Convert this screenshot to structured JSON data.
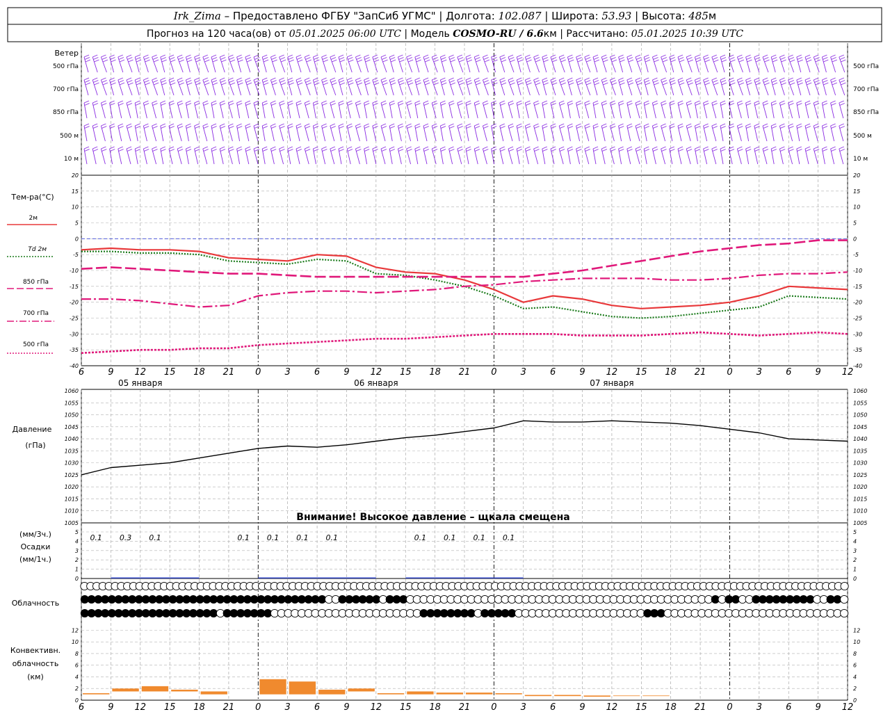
{
  "header": {
    "line1": {
      "station": "Irk_Zima",
      "provided": " – Предоставлено ФГБУ \"ЗапСиб УГМС\" | Долгота: ",
      "lon": "102.087",
      "lat_label": " | Широта: ",
      "lat": "53.93",
      "alt_label": " | Высота: ",
      "alt": "485",
      "alt_unit": "м"
    },
    "line2": {
      "prefix": "Прогноз на 120 часа(ов) от ",
      "run": "05.01.2025 06:00 UTC",
      "model_label": " | Модель ",
      "model": "COSMO-RU / 6.6",
      "model_unit": "км",
      "calc_label": " | Рассчитано: ",
      "calc": "05.01.2025 10:39 UTC"
    }
  },
  "panels": {
    "wind": {
      "title": "Ветер",
      "levels": [
        "500 гПа",
        "700 гПа",
        "850 гПа",
        "500 м",
        "10 м"
      ]
    },
    "temperature": {
      "title": "Тем-ра(°C)",
      "legend": [
        {
          "label": "2м",
          "color": "#e8383a",
          "style": "solid"
        },
        {
          "label": "Td 2м",
          "color": "#1a7a1a",
          "style": "dotted"
        },
        {
          "label": "850 гПа",
          "color": "#e0187a",
          "style": "dash"
        },
        {
          "label": "700 гПа",
          "color": "#e0187a",
          "style": "dashdot"
        },
        {
          "label": "500 гПа",
          "color": "#e0187a",
          "style": "dot"
        }
      ],
      "ticks": [
        "20",
        "15",
        "10",
        "5",
        "0",
        "-5",
        "-10",
        "-15",
        "-20",
        "-25",
        "-30",
        "-35",
        "-40"
      ]
    },
    "pressure": {
      "title": "Давление",
      "unit": "(гПа)",
      "ticks": [
        "1060",
        "1055",
        "1050",
        "1045",
        "1040",
        "1035",
        "1030",
        "1025",
        "1020",
        "1015",
        "1010",
        "1005"
      ],
      "warning": "Внимание! Высокое давление – щкала смещена"
    },
    "precip": {
      "unit_top": "(мм/3ч.)",
      "title": "Осадки",
      "unit_bottom": "(мм/1ч.)",
      "ticks": [
        "5",
        "4",
        "3",
        "2",
        "1",
        "0"
      ],
      "labels": [
        "0.1",
        "0.3",
        "0.1",
        "0.1",
        "0.1",
        "0.1",
        "0.1",
        "0.1",
        "0.1",
        "0.1",
        "0.1"
      ]
    },
    "cloud": {
      "title": "Облачность"
    },
    "convective": {
      "title_1": "Конвективн.",
      "title_2": "облачность",
      "unit": "(км)",
      "ticks": [
        "12",
        "10",
        "8",
        "6",
        "4",
        "2",
        "0"
      ]
    }
  },
  "time_axis": {
    "hour_labels": [
      "6",
      "9",
      "12",
      "15",
      "18",
      "21",
      "0",
      "3",
      "6",
      "9",
      "12",
      "15",
      "18",
      "21",
      "0",
      "3",
      "6",
      "9",
      "12",
      "15",
      "18",
      "21",
      "0",
      "3",
      "6",
      "9",
      "12"
    ],
    "day_labels": [
      "05 января",
      "06 января",
      "07 января"
    ]
  },
  "chart_data": [
    {
      "type": "line",
      "panel": "temperature",
      "x_hours_from_run": [
        0,
        3,
        6,
        9,
        12,
        15,
        18,
        21,
        24,
        27,
        30,
        33,
        36,
        39,
        42,
        45,
        48,
        51,
        54,
        57,
        60,
        63,
        66,
        69,
        72,
        75,
        78
      ],
      "ylim": [
        -40,
        20
      ],
      "series": [
        {
          "name": "2м",
          "values": [
            -3.5,
            -3,
            -3.5,
            -3.5,
            -4,
            -6,
            -6.5,
            -7,
            -5,
            -5.5,
            -9,
            -10.5,
            -11,
            -13,
            -16,
            -20,
            -18,
            -19,
            -21,
            -22,
            -21.5,
            -21,
            -20,
            -18,
            -15,
            -15.5,
            -16
          ]
        },
        {
          "name": "Td 2м",
          "values": [
            -4,
            -4,
            -4.5,
            -4.5,
            -5,
            -7,
            -7.5,
            -8,
            -6.5,
            -7,
            -11,
            -11.5,
            -13,
            -15,
            -18,
            -22,
            -21.5,
            -23,
            -24.5,
            -25,
            -24.5,
            -23.5,
            -22.5,
            -21.5,
            -18,
            -18.5,
            -19
          ]
        },
        {
          "name": "850 гПа",
          "values": [
            -9.5,
            -9,
            -9.5,
            -10,
            -10.5,
            -11,
            -11,
            -11.5,
            -12,
            -12,
            -12,
            -12,
            -12,
            -12,
            -12,
            -12,
            -11,
            -10,
            -8.5,
            -7,
            -5.5,
            -4,
            -3,
            -2,
            -1.5,
            -0.5,
            -0.5
          ]
        },
        {
          "name": "700 гПа",
          "values": [
            -19,
            -19,
            -19.5,
            -20.5,
            -21.5,
            -21,
            -18,
            -17,
            -16.5,
            -16.5,
            -17,
            -16.5,
            -16,
            -15,
            -14.5,
            -13.5,
            -13,
            -12.5,
            -12.5,
            -12.5,
            -13,
            -13,
            -12.5,
            -11.5,
            -11,
            -11,
            -10.5
          ]
        },
        {
          "name": "500 гПа",
          "values": [
            -36,
            -35.5,
            -35,
            -35,
            -34.5,
            -34.5,
            -33.5,
            -33,
            -32.5,
            -32,
            -31.5,
            -31.5,
            -31,
            -30.5,
            -30,
            -30,
            -30,
            -30.5,
            -30.5,
            -30.5,
            -30,
            -29.5,
            -30,
            -30.5,
            -30,
            -29.5,
            -30
          ]
        }
      ]
    },
    {
      "type": "line",
      "panel": "pressure",
      "x_hours_from_run": [
        0,
        3,
        6,
        9,
        12,
        15,
        18,
        21,
        24,
        27,
        30,
        33,
        36,
        39,
        42,
        45,
        48,
        51,
        54,
        57,
        60,
        63,
        66,
        69,
        72,
        75,
        78
      ],
      "ylim": [
        1005,
        1060
      ],
      "series": [
        {
          "name": "Давление",
          "values": [
            1025,
            1028,
            1029,
            1030,
            1032,
            1034,
            1036,
            1037,
            1036.5,
            1037.5,
            1039,
            1040.5,
            1041.5,
            1043,
            1044.5,
            1047.5,
            1047,
            1047,
            1047.5,
            1047,
            1046.5,
            1045.5,
            1044,
            1042.5,
            1040,
            1039.5,
            1039
          ]
        }
      ]
    },
    {
      "type": "bar",
      "panel": "precip",
      "x_hours_from_run": [
        0,
        3,
        6,
        9,
        12,
        15,
        18,
        21,
        24,
        27,
        30,
        33,
        36,
        39,
        42,
        45
      ],
      "ylim": [
        0,
        5
      ],
      "values": [
        0,
        0.1,
        0.3,
        0.1,
        0,
        0,
        0.1,
        0.1,
        0.1,
        0.1,
        0,
        0.1,
        0.1,
        0.1,
        0.1,
        0
      ]
    },
    {
      "type": "bar",
      "panel": "convective",
      "x_hours_from_run": [
        0,
        3,
        6,
        9,
        12,
        15,
        18,
        21,
        24,
        27,
        30,
        33,
        36,
        39,
        42,
        45,
        48,
        51,
        54,
        57
      ],
      "ylim": [
        0,
        13
      ],
      "bottom_km": [
        1,
        1.5,
        1.5,
        1.5,
        1,
        1.5,
        1,
        1,
        1,
        1.5,
        1,
        1,
        1,
        1,
        1,
        0.7,
        0.7,
        0.6,
        0.7,
        0.7
      ],
      "top_km": [
        1.2,
        2,
        2.4,
        1.8,
        1.5,
        1.5,
        3.6,
        3.2,
        1.8,
        2,
        1.2,
        1.5,
        1.3,
        1.3,
        1.2,
        0.9,
        0.9,
        0.8,
        0.8,
        0.8
      ]
    }
  ],
  "cloud_rows": {
    "row1": "EEEEEEEEEEEEEEEEEEEEEEEEEEEEEEEEEEEEEEEEEEEEEEEEEEEEEEEEEEEEEEEEEEEEEEEEEEEEEEEEEEEEEEEEEEEEEEEEEEEEEEEEEEEEEEEEEEEEEEEEEEEEE",
    "row2": "FFFFFFFFFFFFFFFFFFFFFFFFFFFFFFFFFFFFEEFFFFFFEFFFEEEEEEEEEEEEEEEEEEEEEEEEEEEEEEEEEEEEEEEEEEEEEFEFFEEFFFFFFFFFEEFFE",
    "row3": "FFFFFFFFFFFFFFFFFFFFEFFFFFFFEEEEEEEEEEEEEEEEEEEEEEFFFFFFFFEFFFFFEEEEEEEEEEEEEEEEEEEFFFEEEEEEEEEEEEEEEEEEEEEEEEEEE"
  }
}
